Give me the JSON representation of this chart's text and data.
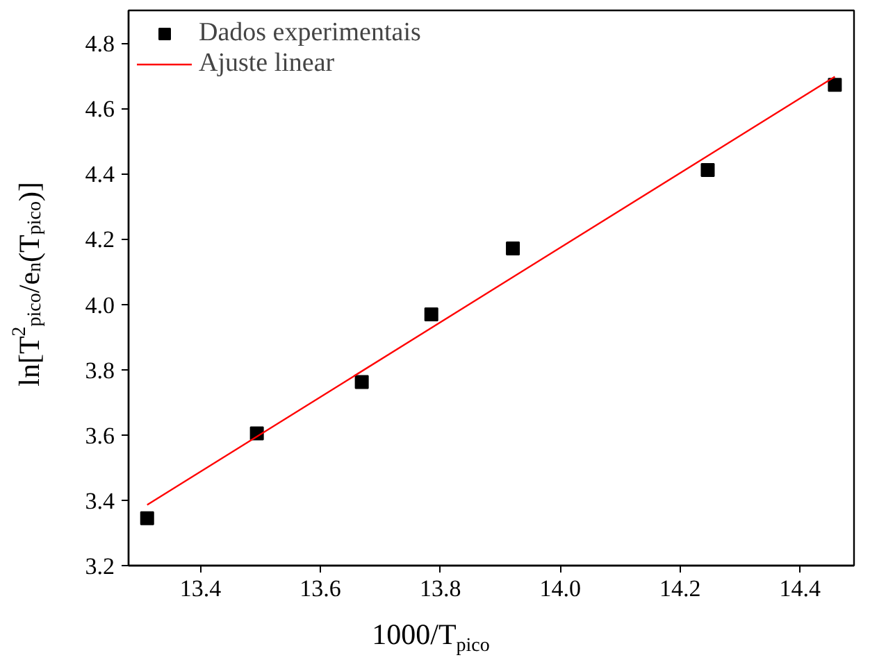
{
  "chart_data": {
    "type": "scatter",
    "xlabel": "1000/T$_{pico}$",
    "ylabel": "ln[T$^{2}$$_{pico}$/e$_{n}$(T$_{pico}$)]",
    "series": [
      {
        "name": "Dados experimentais",
        "color": "#000000",
        "marker": "square",
        "x": [
          13.311,
          13.494,
          13.669,
          13.785,
          13.921,
          14.246,
          14.458
        ],
        "values": [
          3.345,
          3.605,
          3.762,
          3.969,
          4.171,
          4.411,
          4.672
        ]
      },
      {
        "name": "Ajuste linear",
        "type": "line",
        "color": "#ff0000",
        "line_style": "solid",
        "x": [
          13.311,
          14.458
        ],
        "values": [
          3.386,
          4.697
        ]
      }
    ],
    "xlim": [
      13.28,
      14.49
    ],
    "ylim": [
      3.2,
      4.9
    ],
    "xticks": [
      13.4,
      13.6,
      13.8,
      {
        "value": 14.0,
        "label": "14.0"
      },
      14.2,
      14.4
    ],
    "yticks": [
      3.2,
      3.4,
      3.6,
      3.8,
      {
        "value": 4.0,
        "label": "4.0"
      },
      4.2,
      4.4,
      4.6,
      4.8
    ],
    "grid": false,
    "legend": "top left"
  }
}
